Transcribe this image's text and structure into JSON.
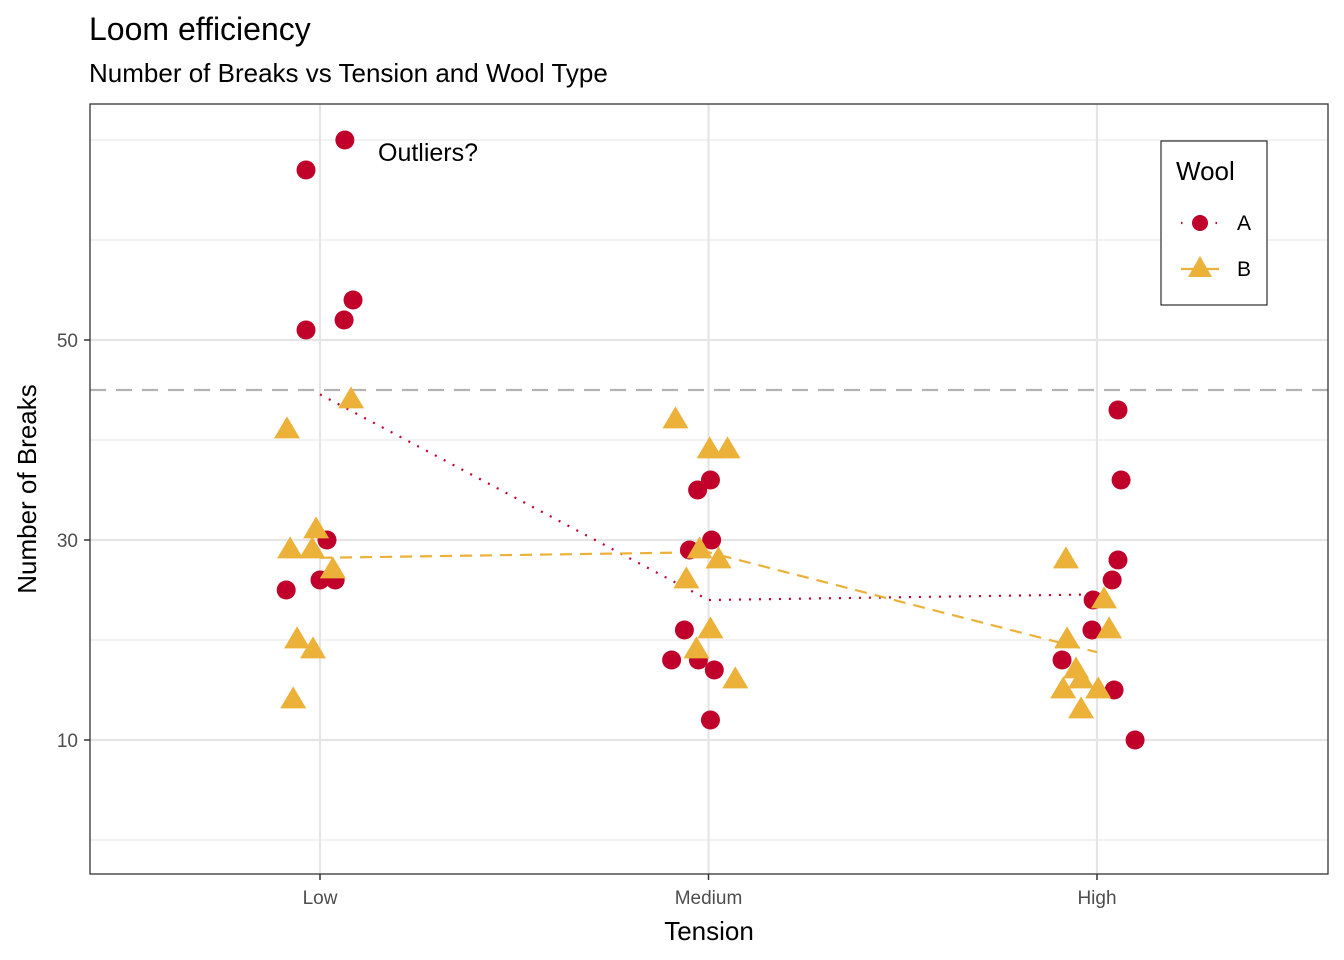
{
  "chart_data": {
    "type": "scatter",
    "title": "Loom efficiency",
    "subtitle": "Number of Breaks vs Tension and Wool Type",
    "xlabel": "Tension",
    "ylabel": "Number of Breaks",
    "categories": [
      "Low",
      "Medium",
      "High"
    ],
    "yticks": [
      10,
      30,
      50
    ],
    "ylim": [
      -3.4,
      73.6
    ],
    "minor_grid": [
      0,
      20,
      40,
      60,
      70
    ],
    "grid": true,
    "reference_line": {
      "value": 45,
      "style": "dashed",
      "color": "#b3b3b3"
    },
    "annotation": {
      "text": "Outliers?",
      "x": "Low",
      "x_offset": 0.3,
      "y": 68
    },
    "legend": {
      "title": "Wool",
      "position": "top-right"
    },
    "series": [
      {
        "name": "A",
        "shape": "circle",
        "color": "#C0002A",
        "mean_line_style": "dotted",
        "means": [
          44.56,
          24.0,
          24.56
        ],
        "points": [
          {
            "x": "Low",
            "jitter": -0.036,
            "y": 67
          },
          {
            "x": "Low",
            "jitter": 0.064,
            "y": 70
          },
          {
            "x": "Low",
            "jitter": -0.036,
            "y": 51
          },
          {
            "x": "Low",
            "jitter": 0.062,
            "y": 52
          },
          {
            "x": "Low",
            "jitter": 0.085,
            "y": 54
          },
          {
            "x": "Low",
            "jitter": 0.018,
            "y": 30
          },
          {
            "x": "Low",
            "jitter": 0.0,
            "y": 26
          },
          {
            "x": "Low",
            "jitter": 0.039,
            "y": 26
          },
          {
            "x": "Low",
            "jitter": -0.087,
            "y": 25
          },
          {
            "x": "Medium",
            "jitter": -0.028,
            "y": 35
          },
          {
            "x": "Medium",
            "jitter": 0.005,
            "y": 36
          },
          {
            "x": "Medium",
            "jitter": 0.008,
            "y": 30
          },
          {
            "x": "Medium",
            "jitter": -0.049,
            "y": 29
          },
          {
            "x": "Medium",
            "jitter": -0.062,
            "y": 21
          },
          {
            "x": "Medium",
            "jitter": -0.095,
            "y": 18
          },
          {
            "x": "Medium",
            "jitter": -0.026,
            "y": 18
          },
          {
            "x": "Medium",
            "jitter": 0.015,
            "y": 17
          },
          {
            "x": "Medium",
            "jitter": 0.005,
            "y": 12
          },
          {
            "x": "High",
            "jitter": 0.054,
            "y": 43
          },
          {
            "x": "High",
            "jitter": 0.062,
            "y": 36
          },
          {
            "x": "High",
            "jitter": 0.054,
            "y": 28
          },
          {
            "x": "High",
            "jitter": 0.039,
            "y": 26
          },
          {
            "x": "High",
            "jitter": -0.01,
            "y": 24
          },
          {
            "x": "High",
            "jitter": -0.013,
            "y": 21
          },
          {
            "x": "High",
            "jitter": -0.09,
            "y": 18
          },
          {
            "x": "High",
            "jitter": 0.044,
            "y": 15
          },
          {
            "x": "High",
            "jitter": 0.098,
            "y": 10
          }
        ]
      },
      {
        "name": "B",
        "shape": "triangle",
        "color": "#EBB138",
        "mean_line_style": "dashed",
        "means": [
          28.22,
          28.78,
          18.78
        ],
        "points": [
          {
            "x": "Low",
            "jitter": -0.085,
            "y": 41
          },
          {
            "x": "Low",
            "jitter": 0.08,
            "y": 44
          },
          {
            "x": "Low",
            "jitter": -0.01,
            "y": 31
          },
          {
            "x": "Low",
            "jitter": -0.077,
            "y": 29
          },
          {
            "x": "Low",
            "jitter": -0.02,
            "y": 29
          },
          {
            "x": "Low",
            "jitter": 0.033,
            "y": 27
          },
          {
            "x": "Low",
            "jitter": -0.059,
            "y": 20
          },
          {
            "x": "Low",
            "jitter": -0.018,
            "y": 19
          },
          {
            "x": "Low",
            "jitter": -0.069,
            "y": 14
          },
          {
            "x": "Medium",
            "jitter": -0.085,
            "y": 42
          },
          {
            "x": "Medium",
            "jitter": 0.003,
            "y": 39
          },
          {
            "x": "Medium",
            "jitter": 0.049,
            "y": 39
          },
          {
            "x": "Medium",
            "jitter": -0.023,
            "y": 29
          },
          {
            "x": "Medium",
            "jitter": 0.026,
            "y": 28
          },
          {
            "x": "Medium",
            "jitter": -0.057,
            "y": 26
          },
          {
            "x": "Medium",
            "jitter": 0.005,
            "y": 21
          },
          {
            "x": "Medium",
            "jitter": -0.031,
            "y": 19
          },
          {
            "x": "Medium",
            "jitter": 0.069,
            "y": 16
          },
          {
            "x": "High",
            "jitter": -0.08,
            "y": 28
          },
          {
            "x": "High",
            "jitter": 0.018,
            "y": 24
          },
          {
            "x": "High",
            "jitter": 0.031,
            "y": 21
          },
          {
            "x": "High",
            "jitter": -0.077,
            "y": 20
          },
          {
            "x": "High",
            "jitter": -0.054,
            "y": 17
          },
          {
            "x": "High",
            "jitter": -0.041,
            "y": 16
          },
          {
            "x": "High",
            "jitter": -0.087,
            "y": 15
          },
          {
            "x": "High",
            "jitter": 0.003,
            "y": 15
          },
          {
            "x": "High",
            "jitter": -0.041,
            "y": 13
          }
        ]
      }
    ]
  }
}
